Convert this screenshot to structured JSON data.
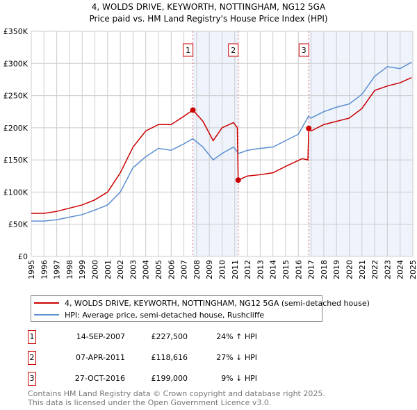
{
  "chart_data": {
    "type": "line",
    "title": "4, WOLDS DRIVE, KEYWORTH, NOTTINGHAM, NG12 5GA",
    "subtitle": "Price paid vs. HM Land Registry's House Price Index (HPI)",
    "xlim": [
      1995,
      2025
    ],
    "ylim": [
      0,
      350000
    ],
    "x_ticks": [
      "1995",
      "1996",
      "1997",
      "1998",
      "1999",
      "2000",
      "2001",
      "2002",
      "2003",
      "2004",
      "2005",
      "2006",
      "2007",
      "2008",
      "2009",
      "2010",
      "2011",
      "2012",
      "2013",
      "2014",
      "2015",
      "2016",
      "2017",
      "2018",
      "2019",
      "2020",
      "2021",
      "2022",
      "2023",
      "2024",
      "2025"
    ],
    "y_ticks": [
      {
        "v": 0,
        "label": "£0"
      },
      {
        "v": 50000,
        "label": "£50K"
      },
      {
        "v": 100000,
        "label": "£100K"
      },
      {
        "v": 150000,
        "label": "£150K"
      },
      {
        "v": 200000,
        "label": "£200K"
      },
      {
        "v": 250000,
        "label": "£250K"
      },
      {
        "v": 300000,
        "label": "£300K"
      },
      {
        "v": 350000,
        "label": "£350K"
      }
    ],
    "series": [
      {
        "name": "4, WOLDS DRIVE, KEYWORTH, NOTTINGHAM, NG12 5GA (semi-detached house)",
        "color": "#cc0000",
        "x": [
          1995,
          1996,
          1997,
          1998,
          1999,
          2000,
          2001,
          2002,
          2003,
          2004,
          2005,
          2006,
          2007,
          2007.71,
          2008.5,
          2009.3,
          2010,
          2010.9,
          2011.2,
          2011.27,
          2012,
          2013,
          2014,
          2015,
          2016.3,
          2016.75,
          2016.82,
          2017,
          2018,
          2019,
          2020,
          2021,
          2022,
          2023,
          2024,
          2024.9
        ],
        "y": [
          67000,
          67000,
          70000,
          75000,
          80000,
          88000,
          100000,
          130000,
          170000,
          195000,
          205000,
          205000,
          218000,
          227500,
          210000,
          180000,
          200000,
          208000,
          200000,
          118616,
          125000,
          127000,
          130000,
          140000,
          152000,
          150000,
          199000,
          195000,
          205000,
          210000,
          215000,
          230000,
          258000,
          265000,
          270000,
          278000
        ]
      },
      {
        "name": "HPI: Average price, semi-detached house, Rushcliffe",
        "color": "#5b8fd0",
        "x": [
          1995,
          1996,
          1997,
          1998,
          1999,
          2000,
          2001,
          2002,
          2003,
          2004,
          2005,
          2006,
          2007,
          2007.7,
          2008.5,
          2009.3,
          2010,
          2010.9,
          2011.3,
          2012,
          2013,
          2014,
          2015,
          2016,
          2016.8,
          2017,
          2018,
          2019,
          2020,
          2021,
          2022,
          2023,
          2024,
          2024.9
        ],
        "y": [
          55000,
          55000,
          57000,
          61000,
          65000,
          72000,
          80000,
          100000,
          138000,
          155000,
          168000,
          165000,
          175000,
          183000,
          170000,
          150000,
          160000,
          170000,
          160000,
          165000,
          168000,
          170000,
          180000,
          190000,
          218000,
          215000,
          225000,
          232000,
          237000,
          252000,
          280000,
          295000,
          292000,
          302000
        ]
      }
    ],
    "sales": [
      {
        "n": "1",
        "x": 2007.71,
        "y": 227500,
        "date": "14-SEP-2007",
        "price": "£227,500",
        "hpi": "24% ↑ HPI"
      },
      {
        "n": "2",
        "x": 2011.27,
        "y": 118616,
        "date": "07-APR-2011",
        "price": "£118,616",
        "hpi": "27% ↓ HPI"
      },
      {
        "n": "3",
        "x": 2016.82,
        "y": 199000,
        "date": "27-OCT-2016",
        "price": "£199,000",
        "hpi": "9% ↓ HPI"
      }
    ],
    "shading": [
      [
        2007.71,
        2011.27
      ],
      [
        2016.82,
        2025
      ]
    ]
  },
  "footer": {
    "line1": "Contains HM Land Registry data © Crown copyright and database right 2025.",
    "line2": "This data is licensed under the Open Government Licence v3.0."
  }
}
